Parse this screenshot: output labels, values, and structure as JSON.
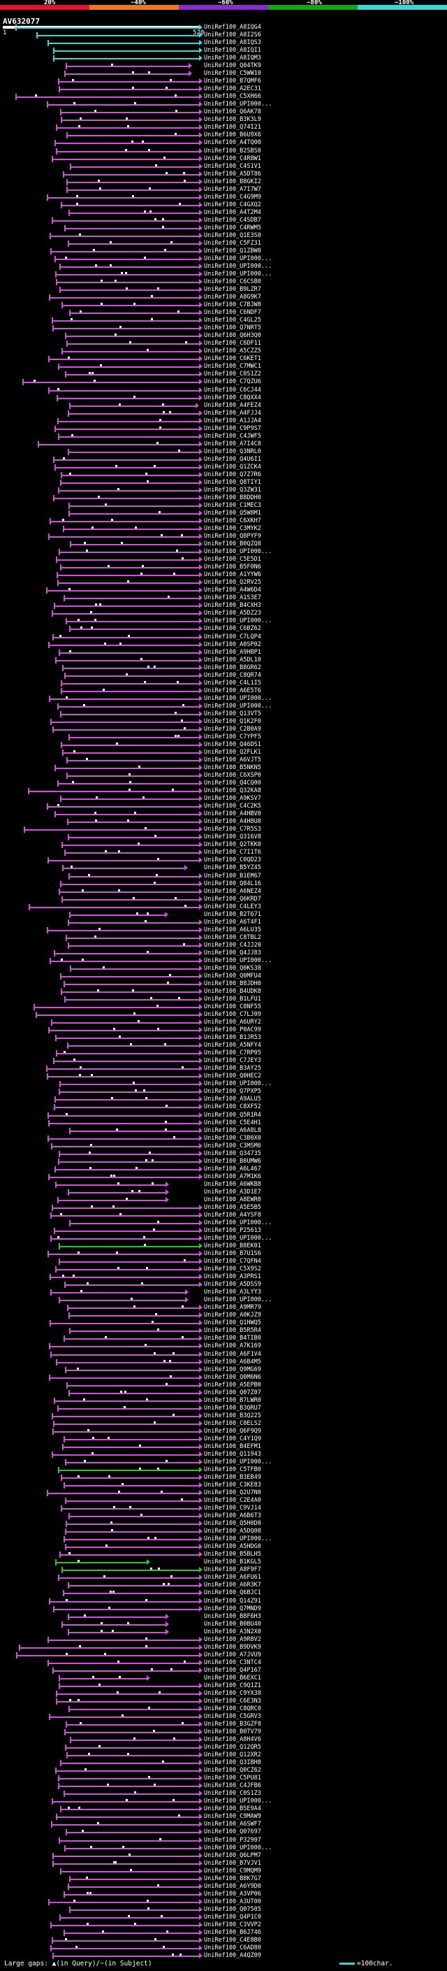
{
  "scale": {
    "labels": [
      "20%",
      "~40%",
      "~60%",
      "~80%",
      "~100%"
    ],
    "colors": [
      "#e8112d",
      "#f07818",
      "#8c2bd0",
      "#13a813",
      "#3bd6d6"
    ]
  },
  "query": {
    "id": "AV632077",
    "start": "1",
    "end": "520"
  },
  "colors": {
    "cyan": "#3bd6d6",
    "magenta": "#d24fdc",
    "green": "#2ec42e"
  },
  "hits": [
    "UniRef100_A8IQG4",
    "UniRef100_A8I2S6",
    "UniRef100_A8IQS3",
    "UniRef100_A8IQI1",
    "UniRef100_A8IQM3",
    "UniRef100_Q04TK9",
    "UniRef100_C5WW10",
    "UniRef100_B7QMF6",
    "UniRef100_A2EC31",
    "UniRef100_C5XH66",
    "UniRef100_UPI000...",
    "UniRef100_Q6AK78",
    "UniRef100_B3K3L9",
    "UniRef100_Q74I21",
    "UniRef100_B6U9X6",
    "UniRef100_A4TQ00",
    "UniRef100_B2SBS0",
    "UniRef100_C4R8W1",
    "UniRef100_C4S1V1",
    "UniRef100_A5DT86",
    "UniRef100_B8GKI2",
    "UniRef100_A7I7W7",
    "UniRef100_C4G9M9",
    "UniRef100_C4GXQ2",
    "UniRef100_A4T2M4",
    "UniRef100_C4SDB7",
    "UniRef100_C4RWM5",
    "UniRef100_Q1E3S0",
    "UniRef100_C5FZ31",
    "UniRef100_Q1ZBW0",
    "UniRef100_UPI000...",
    "UniRef100_UPI000...",
    "UniRef100_UPI000...",
    "UniRef100_C6CSB0",
    "UniRef100_B9LZR7",
    "UniRef100_A8G9K7",
    "UniRef100_C7BJW8",
    "UniRef100_C6NDF7",
    "UniRef100_C4GL25",
    "UniRef100_Q7NRT5",
    "UniRef100_Q6H3Q0",
    "UniRef100_C6DF11",
    "UniRef100_A5CZZ5",
    "UniRef100_C6KET1",
    "UniRef100_C7MWC1",
    "UniRef100_C0S1Z2",
    "UniRef100_C7QZU6",
    "UniRef100_C6CJ44",
    "UniRef100_C8QXX4",
    "UniRef100_A4FEZ4",
    "UniRef100_A4FJJ4",
    "UniRef100_A1JJA4",
    "UniRef100_C9P9S7",
    "UniRef100_C4JWF5",
    "UniRef100_A7I4C8",
    "UniRef100_Q3NRL0",
    "UniRef100_Q4U6I1",
    "UniRef100_Q1ZCK4",
    "UniRef100_Q7Z7R6",
    "UniRef100_Q8TIY1",
    "UniRef100_Q3ZW31",
    "UniRef100_B8DDH0",
    "UniRef100_C1MEC3",
    "UniRef100_Q5W8M1",
    "UniRef100_C6XKH7",
    "UniRef100_C3MYK2",
    "UniRef100_Q8PYF9",
    "UniRef100_B0QZQ8",
    "UniRef100_UPI000...",
    "UniRef100_C5E5D1",
    "UniRef100_B5F0N6",
    "UniRef100_A1YYW6",
    "UniRef100_Q2RV25",
    "UniRef100_A4W6D4",
    "UniRef100_A1S3E7",
    "UniRef100_B4CXH3",
    "UniRef100_A5DZ23",
    "UniRef100_UPI000...",
    "UniRef100_C6BZ62",
    "UniRef100_C7LQP4",
    "UniRef100_A0SP02",
    "UniRef100_A9HBP1",
    "UniRef100_A5DL10",
    "UniRef100_B8GR62",
    "UniRef100_C8QR74",
    "UniRef100_C4L1I5",
    "UniRef100_A6E5T6",
    "UniRef100_UPI000...",
    "UniRef100_UPI000...",
    "UniRef100_Q13VT5",
    "UniRef100_Q1K2F0",
    "UniRef100_C2B0A9",
    "UniRef100_C7YPF5",
    "UniRef100_Q46DS1",
    "UniRef100_Q2FLK1",
    "UniRef100_A6VJT5",
    "UniRef100_B5NKN5",
    "UniRef100_C6XSP0",
    "UniRef100_Q4CQ00",
    "UniRef100_Q32KA8",
    "UniRef100_A9KSV7",
    "UniRef100_C4C2K5",
    "UniRef100_A4HBV0",
    "UniRef100_A4H8U8",
    "UniRef100_C7R5S3",
    "UniRef100_Q316V8",
    "UniRef100_Q2TKK0",
    "UniRef100_C7I1T6",
    "UniRef100_C0QD23",
    "UniRef100_B5YZ45",
    "UniRef100_B1EM67",
    "UniRef100_Q84L16",
    "UniRef100_A6NEZ4",
    "UniRef100_Q6KRD7",
    "UniRef100_C4LEY3",
    "UniRef100_B2T671",
    "UniRef100_A6T4F1",
    "UniRef100_A6LU35",
    "UniRef100_C8TBL2",
    "UniRef100_C4JJ20",
    "UniRef100_Q4JJ83",
    "UniRef100_UPI000...",
    "UniRef100_Q0KS38",
    "UniRef100_Q0MFU4",
    "UniRef100_B8JDH0",
    "UniRef100_B4UDK8",
    "UniRef100_B1LFU1",
    "UniRef100_C8NF55",
    "UniRef100_C7LJ09",
    "UniRef100_A6URY2",
    "UniRef100_P0AC99",
    "UniRef100_B1JR53",
    "UniRef100_A5NFY4",
    "UniRef100_C7RP05",
    "UniRef100_C7JEY3",
    "UniRef100_B3AY25",
    "UniRef100_Q0HEC2",
    "UniRef100_UPI000...",
    "UniRef100_Q7PXP5",
    "UniRef100_A9ALU5",
    "UniRef100_C8XF52",
    "UniRef100_Q5R1R4",
    "UniRef100_C5E4H1",
    "UniRef100_A6A8L8",
    "UniRef100_C3B0X0",
    "UniRef100_C3MSM6",
    "UniRef100_Q34735",
    "UniRef100_B0UMW6",
    "UniRef100_A6L467",
    "UniRef100_A7M1K6",
    "UniRef100_A6WKB8",
    "UniRef100_A3D1E7",
    "UniRef100_A8EWR0",
    "UniRef100_A5E5B5",
    "UniRef100_A4YSF8",
    "UniRef100_UPI000...",
    "UniRef100_P25613",
    "UniRef100_UPI000...",
    "UniRef100_B8EK01",
    "UniRef100_B7U1S6",
    "UniRef100_C7QFN4",
    "UniRef100_C5X9S2",
    "UniRef100_A3PRS1",
    "UniRef100_A5DSS9",
    "UniRef100_A3LYY3",
    "UniRef100_UPI000...",
    "UniRef100_A9MR79",
    "UniRef100_A0KJZ9",
    "UniRef100_Q1HWQ5",
    "UniRef100_B5R5R4",
    "UniRef100_B4TIB0",
    "UniRef100_A7K169",
    "UniRef100_A6F1V4",
    "UniRef100_A6B4M5",
    "UniRef100_Q9MG69",
    "UniRef100_Q0M6N6",
    "UniRef100_A5EPB0",
    "UniRef100_Q07Z07",
    "UniRef100_B7LWR0",
    "UniRef100_B3QRU7",
    "UniRef100_B3Q225",
    "UniRef100_C0ELS2",
    "UniRef100_Q6F9Q9",
    "UniRef100_C4Y1Q9",
    "UniRef100_B4EFM1",
    "UniRef100_Q11943",
    "UniRef100_UPI000...",
    "UniRef100_C5TFB0",
    "UniRef100_B3EB49",
    "UniRef100_C3KE83",
    "UniRef100_Q2U7N0",
    "UniRef100_C2E4A0",
    "UniRef100_C9VJ14",
    "UniRef100_A6B6T3",
    "UniRef100_Q5H0D0",
    "UniRef100_A5DQ08",
    "UniRef100_UPI000...",
    "UniRef100_A5HDG0",
    "UniRef100_B5BLH5",
    "UniRef100_B1KGL5",
    "UniRef100_A8F9F7",
    "UniRef100_A6FU61",
    "UniRef100_A6R3K7",
    "UniRef100_Q6BJC1",
    "UniRef100_Q14Z91",
    "UniRef100_Q7MND9",
    "UniRef100_B8F6H3",
    "UniRef100_B0BU40",
    "UniRef100_A3N2X0",
    "UniRef100_A9R8V2",
    "UniRef100_B9DVK9",
    "UniRef100_A7JVU9",
    "UniRef100_C3NTC4",
    "UniRef100_Q4P167",
    "UniRef100_B6EXC1",
    "UniRef100_C9Q1Z1",
    "UniRef100_C9YX38",
    "UniRef100_C6E3N3",
    "UniRef100_C8QRC0",
    "UniRef100_C5GRV3",
    "UniRef100_B3GZF8",
    "UniRef100_B0TV79",
    "UniRef100_A8H4V6",
    "UniRef100_Q12QR5",
    "UniRef100_Q12XR2",
    "UniRef100_Q3IBH8",
    "UniRef100_Q0CZ62",
    "UniRef100_C5PU81",
    "UniRef100_C4JFB6",
    "UniRef100_C0S1Z3",
    "UniRef100_UPI000...",
    "UniRef100_B5E9A4",
    "UniRef100_C9MAW9",
    "UniRef100_A6SWF7",
    "UniRef100_Q07697",
    "UniRef100_P32907",
    "UniRef100_UPI000...",
    "UniRef100_Q6LPM7",
    "UniRef100_B7VJV1",
    "UniRef100_C9MQM9",
    "UniRef100_B8K7G7",
    "UniRef100_A6Y9D0",
    "UniRef100_A3VP06",
    "UniRef100_A3UT00",
    "UniRef100_Q07505",
    "UniRef100_Q4P1C0",
    "UniRef100_C3VVP2",
    "UniRef100_B6J746",
    "UniRef100_C4E8B0",
    "UniRef100_C6AD80",
    "UniRef100_A4QZ09"
  ],
  "footer": {
    "large_gaps": "Large gaps: ▲(in Query)/~(in Subject)",
    "legend": "=100char."
  }
}
